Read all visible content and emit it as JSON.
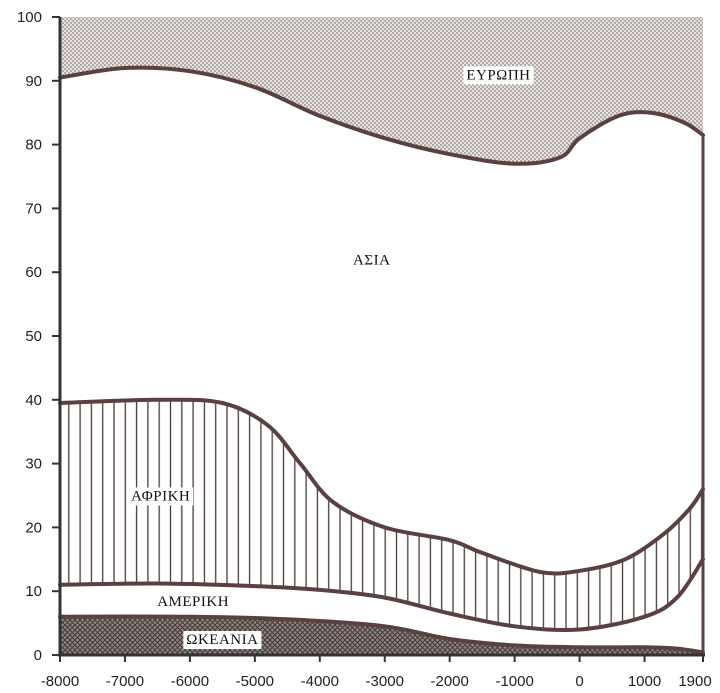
{
  "chart_data": {
    "type": "area",
    "title": "",
    "xlabel": "",
    "ylabel": "",
    "xlim": [
      -8000,
      1900
    ],
    "ylim": [
      0,
      100
    ],
    "x_ticks": [
      {
        "value": -8000,
        "label": "-8000"
      },
      {
        "value": -7000,
        "label": "-7000"
      },
      {
        "value": -6000,
        "label": "-6000"
      },
      {
        "value": -5000,
        "label": "-5000"
      },
      {
        "value": -4000,
        "label": "-4000"
      },
      {
        "value": -3000,
        "label": "-3000"
      },
      {
        "value": -2000,
        "label": "-2000"
      },
      {
        "value": -1000,
        "label": "-1000"
      },
      {
        "value": 0,
        "label": "0"
      },
      {
        "value": 1000,
        "label": "1000"
      },
      {
        "value": 1900,
        "label": "1900"
      }
    ],
    "y_ticks": [
      0,
      10,
      20,
      30,
      40,
      50,
      60,
      70,
      80,
      90,
      100
    ],
    "stacked": true,
    "boundaries": [
      {
        "upper_of": "ΩΚΕΑΝΙΑ",
        "points": [
          [
            -8000,
            6
          ],
          [
            -6000,
            6
          ],
          [
            -4500,
            5.6
          ],
          [
            -3000,
            4.5
          ],
          [
            -2000,
            2.5
          ],
          [
            -1000,
            1.5
          ],
          [
            0,
            1.2
          ],
          [
            1000,
            1.2
          ],
          [
            1500,
            1.0
          ],
          [
            1900,
            0.4
          ]
        ]
      },
      {
        "upper_of": "ΑΜΕΡΙΚΗ",
        "points": [
          [
            -8000,
            11
          ],
          [
            -6500,
            11.2
          ],
          [
            -5000,
            10.8
          ],
          [
            -4000,
            10.2
          ],
          [
            -3000,
            9.0
          ],
          [
            -2000,
            6.5
          ],
          [
            -1000,
            4.5
          ],
          [
            0,
            4.0
          ],
          [
            1000,
            6.0
          ],
          [
            1500,
            9.0
          ],
          [
            1900,
            15
          ]
        ]
      },
      {
        "upper_of": "ΑΦΡΙΚΗ",
        "points": [
          [
            -8000,
            39.5
          ],
          [
            -6500,
            40
          ],
          [
            -5500,
            39.5
          ],
          [
            -4800,
            36
          ],
          [
            -4300,
            30
          ],
          [
            -3800,
            24
          ],
          [
            -3000,
            20
          ],
          [
            -2000,
            18
          ],
          [
            -1500,
            16
          ],
          [
            -600,
            13
          ],
          [
            0,
            13.2
          ],
          [
            700,
            15
          ],
          [
            1300,
            19
          ],
          [
            1700,
            23
          ],
          [
            1900,
            26
          ]
        ]
      },
      {
        "upper_of": "ΑΣΙΑ",
        "points": [
          [
            -8000,
            90.5
          ],
          [
            -7000,
            92
          ],
          [
            -6000,
            91.5
          ],
          [
            -5000,
            89
          ],
          [
            -4000,
            84.5
          ],
          [
            -3000,
            81
          ],
          [
            -2000,
            78.5
          ],
          [
            -1000,
            77
          ],
          [
            -300,
            78
          ],
          [
            0,
            81
          ],
          [
            600,
            84.5
          ],
          [
            1100,
            85
          ],
          [
            1600,
            83.5
          ],
          [
            1900,
            81.5
          ]
        ]
      },
      {
        "upper_of": "ΕΥΡΩΠΗ",
        "points": [
          [
            -8000,
            100
          ],
          [
            1900,
            100
          ]
        ]
      }
    ],
    "regions": [
      {
        "name": "ΩΚΕΑΝΙΑ",
        "pattern": "crosshatch",
        "label_at": [
          -5500,
          2.5
        ]
      },
      {
        "name": "ΑΜΕΡΙΚΗ",
        "pattern": "none",
        "label_at": [
          -5950,
          8.5
        ]
      },
      {
        "name": "ΑΦΡΙΚΗ",
        "pattern": "vertical-lines",
        "label_at": [
          -6450,
          25
        ]
      },
      {
        "name": "ΑΣΙΑ",
        "pattern": "none",
        "label_at": [
          -3200,
          62
        ]
      },
      {
        "name": "ΕΥΡΩΠΗ",
        "pattern": "dots",
        "label_at": [
          -1250,
          91
        ]
      }
    ]
  }
}
